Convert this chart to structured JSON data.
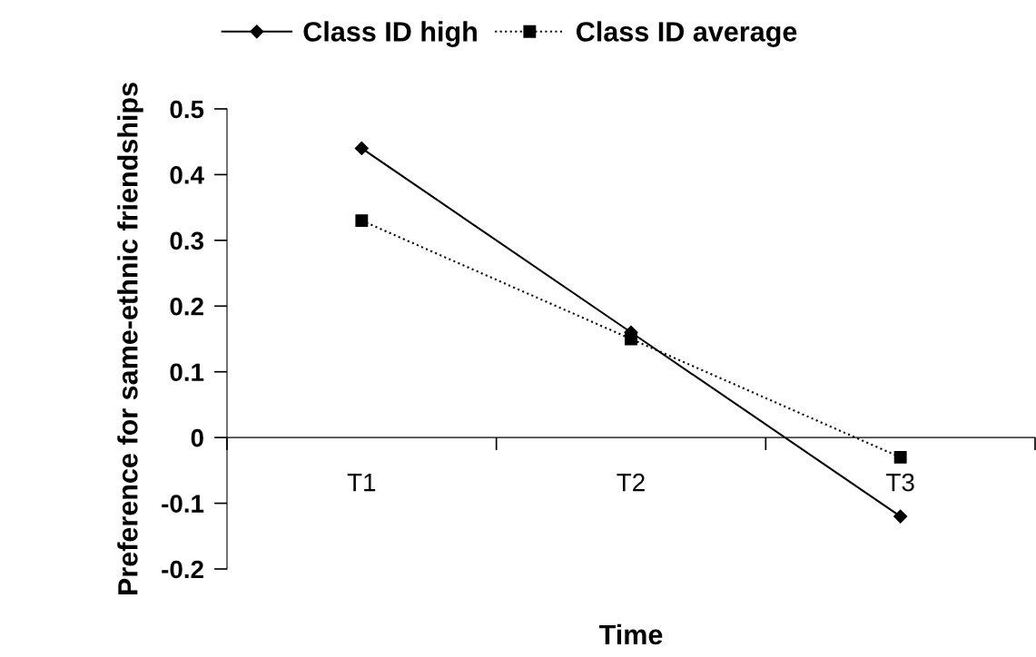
{
  "chart_data": {
    "type": "line",
    "xlabel": "Time",
    "ylabel": "Preference for same-ethnic friendships",
    "categories": [
      "T1",
      "T2",
      "T3"
    ],
    "series": [
      {
        "name": "Class ID high",
        "color": "#000000",
        "values": [
          0.44,
          0.16,
          -0.12
        ],
        "marker": "diamond",
        "line_style": "solid"
      },
      {
        "name": "Class ID average",
        "color": "#000000",
        "values": [
          0.33,
          0.15,
          -0.03
        ],
        "marker": "square",
        "line_style": "dotted"
      }
    ],
    "ylim": [
      -0.2,
      0.5
    ],
    "yticks": [
      -0.2,
      -0.1,
      0,
      0.1,
      0.2,
      0.3,
      0.4,
      0.5
    ],
    "grid": false,
    "legend": "top"
  }
}
